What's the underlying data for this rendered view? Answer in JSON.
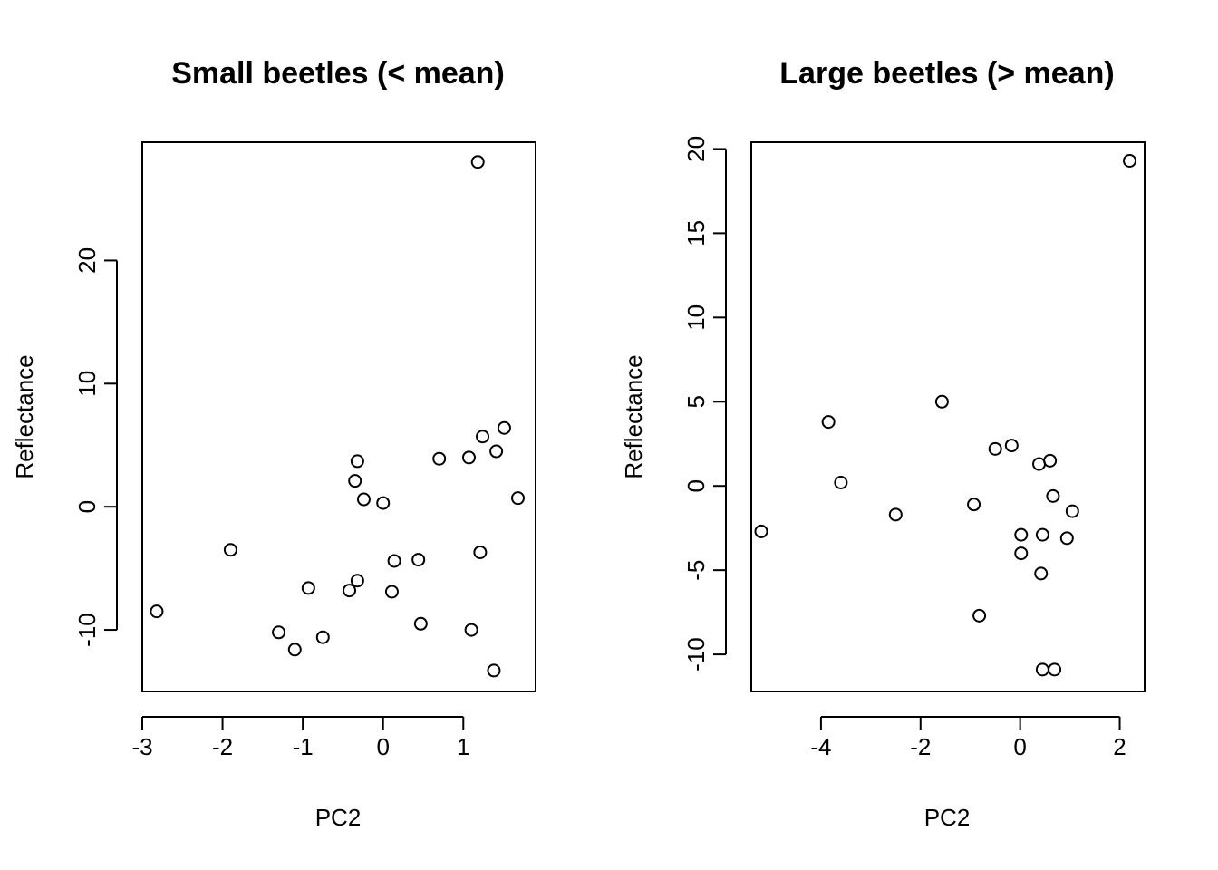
{
  "chart_data": [
    {
      "type": "scatter",
      "title": "Small beetles (< mean)",
      "xlabel": "PC2",
      "ylabel": "Reflectance",
      "xlim": [
        -3.0,
        1.9
      ],
      "ylim": [
        -15.0,
        29.6
      ],
      "xticks": [
        -3,
        -2,
        -1,
        0,
        1
      ],
      "yticks": [
        -10,
        0,
        10,
        20
      ],
      "grid": false,
      "points": [
        {
          "x": -2.82,
          "y": -8.5
        },
        {
          "x": -1.9,
          "y": -3.5
        },
        {
          "x": -1.3,
          "y": -10.2
        },
        {
          "x": -1.1,
          "y": -11.6
        },
        {
          "x": -0.93,
          "y": -6.6
        },
        {
          "x": -0.75,
          "y": -10.6
        },
        {
          "x": -0.42,
          "y": -6.8
        },
        {
          "x": -0.32,
          "y": -6.0
        },
        {
          "x": -0.35,
          "y": 2.1
        },
        {
          "x": -0.32,
          "y": 3.7
        },
        {
          "x": -0.24,
          "y": 0.6
        },
        {
          "x": 0.0,
          "y": 0.3
        },
        {
          "x": 0.11,
          "y": -6.9
        },
        {
          "x": 0.14,
          "y": -4.4
        },
        {
          "x": 0.44,
          "y": -4.3
        },
        {
          "x": 0.47,
          "y": -9.5
        },
        {
          "x": 0.7,
          "y": 3.9
        },
        {
          "x": 1.07,
          "y": 4.0
        },
        {
          "x": 1.1,
          "y": -10.0
        },
        {
          "x": 1.18,
          "y": 28.0
        },
        {
          "x": 1.21,
          "y": -3.7
        },
        {
          "x": 1.24,
          "y": 5.7
        },
        {
          "x": 1.41,
          "y": 4.5
        },
        {
          "x": 1.38,
          "y": -13.3
        },
        {
          "x": 1.51,
          "y": 6.4
        },
        {
          "x": 1.68,
          "y": 0.7
        }
      ]
    },
    {
      "type": "scatter",
      "title": "Large beetles (> mean)",
      "xlabel": "PC2",
      "ylabel": "Reflectance",
      "xlim": [
        -5.4,
        2.5
      ],
      "ylim": [
        -12.2,
        20.4
      ],
      "xticks": [
        -4,
        -2,
        0,
        2
      ],
      "yticks": [
        -10,
        -5,
        0,
        5,
        10,
        15,
        20
      ],
      "grid": false,
      "points": [
        {
          "x": -5.2,
          "y": -2.7
        },
        {
          "x": -3.85,
          "y": 3.8
        },
        {
          "x": -3.6,
          "y": 0.2
        },
        {
          "x": -2.5,
          "y": -1.7
        },
        {
          "x": -1.57,
          "y": 5.0
        },
        {
          "x": -0.93,
          "y": -1.1
        },
        {
          "x": -0.82,
          "y": -7.7
        },
        {
          "x": -0.5,
          "y": 2.2
        },
        {
          "x": -0.17,
          "y": 2.4
        },
        {
          "x": 0.02,
          "y": -2.9
        },
        {
          "x": 0.02,
          "y": -4.0
        },
        {
          "x": 0.38,
          "y": 1.3
        },
        {
          "x": 0.42,
          "y": -5.2
        },
        {
          "x": 0.45,
          "y": -2.9
        },
        {
          "x": 0.45,
          "y": -10.9
        },
        {
          "x": 0.6,
          "y": 1.5
        },
        {
          "x": 0.66,
          "y": -0.6
        },
        {
          "x": 0.69,
          "y": -10.9
        },
        {
          "x": 0.94,
          "y": -3.1
        },
        {
          "x": 1.05,
          "y": -1.5
        },
        {
          "x": 2.2,
          "y": 19.3
        }
      ]
    }
  ]
}
